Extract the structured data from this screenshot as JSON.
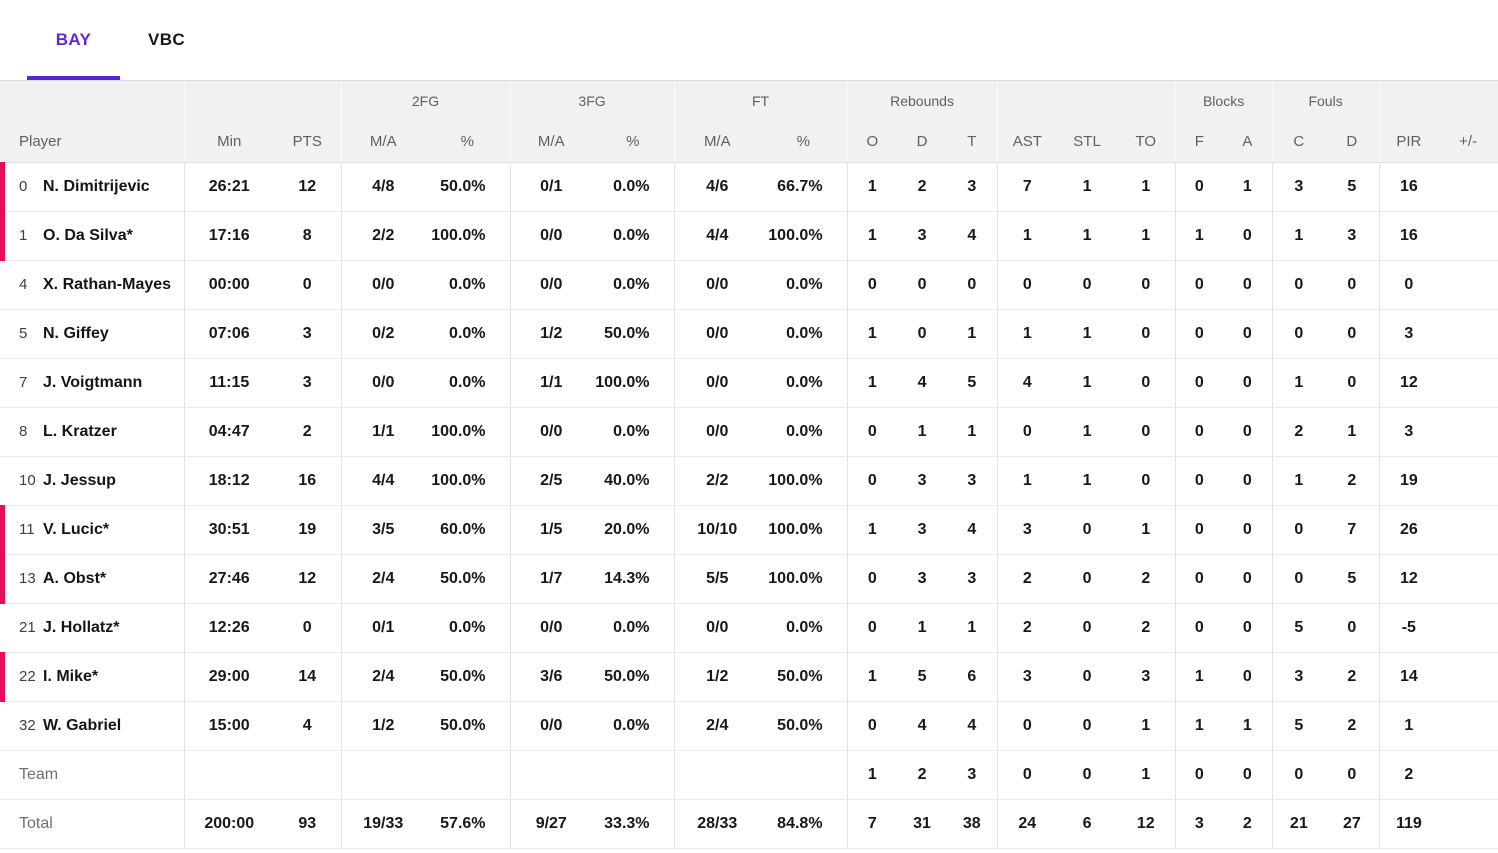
{
  "colors": {
    "accent_purple": "#5c22d5",
    "on_court_pink": "#e30f5a",
    "header_bg": "#f1f1f2",
    "header_text": "#5d6066"
  },
  "tabs": [
    {
      "label": "BAY",
      "active": true
    },
    {
      "label": "VBC",
      "active": false
    }
  ],
  "table": {
    "groups": [
      {
        "label": "",
        "span": 1
      },
      {
        "label": "",
        "span": 2
      },
      {
        "label": "2FG",
        "span": 2
      },
      {
        "label": "3FG",
        "span": 2
      },
      {
        "label": "FT",
        "span": 2
      },
      {
        "label": "Rebounds",
        "span": 3
      },
      {
        "label": "",
        "span": 3
      },
      {
        "label": "Blocks",
        "span": 2
      },
      {
        "label": "Fouls",
        "span": 2
      },
      {
        "label": "",
        "span": 2
      }
    ],
    "columns": [
      "Player",
      "Min",
      "PTS",
      "M/A",
      "%",
      "M/A",
      "%",
      "M/A",
      "%",
      "O",
      "D",
      "T",
      "AST",
      "STL",
      "TO",
      "F",
      "A",
      "C",
      "D",
      "PIR",
      "+/-"
    ],
    "rows": [
      {
        "number": "0",
        "name": "N. Dimitrijevic",
        "on_court": true,
        "cells": [
          "26:21",
          "12",
          "4/8",
          "50.0%",
          "0/1",
          "0.0%",
          "4/6",
          "66.7%",
          "1",
          "2",
          "3",
          "7",
          "1",
          "1",
          "0",
          "1",
          "3",
          "5",
          "16",
          ""
        ]
      },
      {
        "number": "1",
        "name": "O. Da Silva*",
        "on_court": true,
        "cells": [
          "17:16",
          "8",
          "2/2",
          "100.0%",
          "0/0",
          "0.0%",
          "4/4",
          "100.0%",
          "1",
          "3",
          "4",
          "1",
          "1",
          "1",
          "1",
          "0",
          "1",
          "3",
          "16",
          ""
        ]
      },
      {
        "number": "4",
        "name": "X. Rathan-Mayes",
        "on_court": false,
        "cells": [
          "00:00",
          "0",
          "0/0",
          "0.0%",
          "0/0",
          "0.0%",
          "0/0",
          "0.0%",
          "0",
          "0",
          "0",
          "0",
          "0",
          "0",
          "0",
          "0",
          "0",
          "0",
          "0",
          ""
        ]
      },
      {
        "number": "5",
        "name": "N. Giffey",
        "on_court": false,
        "cells": [
          "07:06",
          "3",
          "0/2",
          "0.0%",
          "1/2",
          "50.0%",
          "0/0",
          "0.0%",
          "1",
          "0",
          "1",
          "1",
          "1",
          "0",
          "0",
          "0",
          "0",
          "0",
          "3",
          ""
        ]
      },
      {
        "number": "7",
        "name": "J. Voigtmann",
        "on_court": false,
        "cells": [
          "11:15",
          "3",
          "0/0",
          "0.0%",
          "1/1",
          "100.0%",
          "0/0",
          "0.0%",
          "1",
          "4",
          "5",
          "4",
          "1",
          "0",
          "0",
          "0",
          "1",
          "0",
          "12",
          ""
        ]
      },
      {
        "number": "8",
        "name": "L. Kratzer",
        "on_court": false,
        "cells": [
          "04:47",
          "2",
          "1/1",
          "100.0%",
          "0/0",
          "0.0%",
          "0/0",
          "0.0%",
          "0",
          "1",
          "1",
          "0",
          "1",
          "0",
          "0",
          "0",
          "2",
          "1",
          "3",
          ""
        ]
      },
      {
        "number": "10",
        "name": "J. Jessup",
        "on_court": false,
        "cells": [
          "18:12",
          "16",
          "4/4",
          "100.0%",
          "2/5",
          "40.0%",
          "2/2",
          "100.0%",
          "0",
          "3",
          "3",
          "1",
          "1",
          "0",
          "0",
          "0",
          "1",
          "2",
          "19",
          ""
        ]
      },
      {
        "number": "11",
        "name": "V. Lucic*",
        "on_court": true,
        "cells": [
          "30:51",
          "19",
          "3/5",
          "60.0%",
          "1/5",
          "20.0%",
          "10/10",
          "100.0%",
          "1",
          "3",
          "4",
          "3",
          "0",
          "1",
          "0",
          "0",
          "0",
          "7",
          "26",
          ""
        ]
      },
      {
        "number": "13",
        "name": "A. Obst*",
        "on_court": true,
        "cells": [
          "27:46",
          "12",
          "2/4",
          "50.0%",
          "1/7",
          "14.3%",
          "5/5",
          "100.0%",
          "0",
          "3",
          "3",
          "2",
          "0",
          "2",
          "0",
          "0",
          "0",
          "5",
          "12",
          ""
        ]
      },
      {
        "number": "21",
        "name": "J. Hollatz*",
        "on_court": false,
        "cells": [
          "12:26",
          "0",
          "0/1",
          "0.0%",
          "0/0",
          "0.0%",
          "0/0",
          "0.0%",
          "0",
          "1",
          "1",
          "2",
          "0",
          "2",
          "0",
          "0",
          "5",
          "0",
          "-5",
          ""
        ]
      },
      {
        "number": "22",
        "name": "I. Mike*",
        "on_court": true,
        "cells": [
          "29:00",
          "14",
          "2/4",
          "50.0%",
          "3/6",
          "50.0%",
          "1/2",
          "50.0%",
          "1",
          "5",
          "6",
          "3",
          "0",
          "3",
          "1",
          "0",
          "3",
          "2",
          "14",
          ""
        ]
      },
      {
        "number": "32",
        "name": "W. Gabriel",
        "on_court": false,
        "cells": [
          "15:00",
          "4",
          "1/2",
          "50.0%",
          "0/0",
          "0.0%",
          "2/4",
          "50.0%",
          "0",
          "4",
          "4",
          "0",
          "0",
          "1",
          "1",
          "1",
          "5",
          "2",
          "1",
          ""
        ]
      },
      {
        "label": "Team",
        "cells": [
          "",
          "",
          "",
          "",
          "",
          "",
          "",
          "",
          "1",
          "2",
          "3",
          "0",
          "0",
          "1",
          "0",
          "0",
          "0",
          "0",
          "2",
          ""
        ]
      },
      {
        "label": "Total",
        "cells": [
          "200:00",
          "93",
          "19/33",
          "57.6%",
          "9/27",
          "33.3%",
          "28/33",
          "84.8%",
          "7",
          "31",
          "38",
          "24",
          "6",
          "12",
          "3",
          "2",
          "21",
          "27",
          "119",
          ""
        ]
      }
    ]
  }
}
